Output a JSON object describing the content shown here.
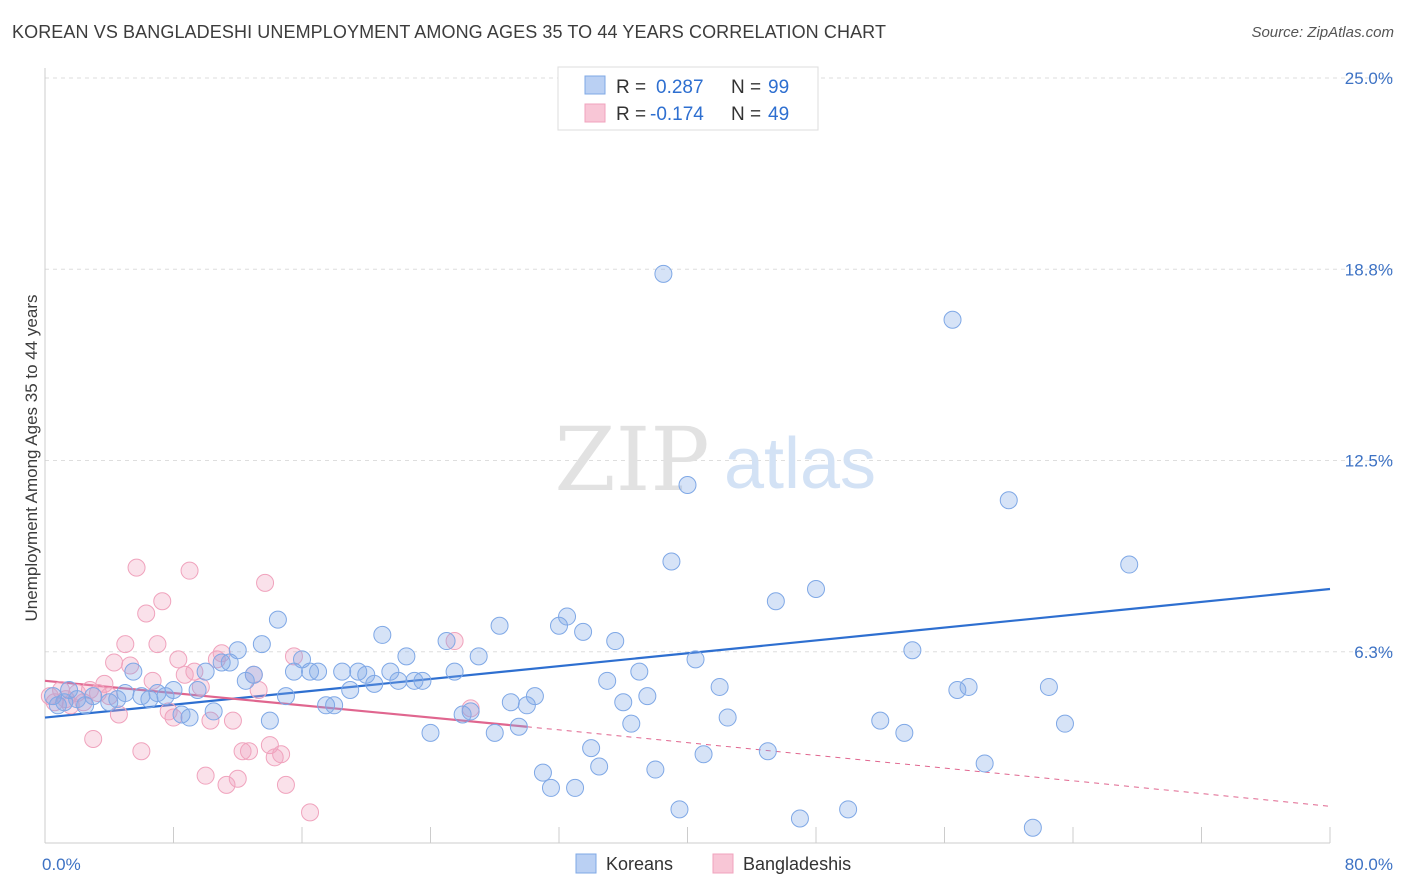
{
  "header": {
    "title": "KOREAN VS BANGLADESHI UNEMPLOYMENT AMONG AGES 35 TO 44 YEARS CORRELATION CHART",
    "source": "Source: ZipAtlas.com"
  },
  "watermark": {
    "zip": "ZIP",
    "atlas": "atlas"
  },
  "legend": {
    "rows": [
      {
        "r_label": "R =",
        "r_value": "0.287",
        "n_label": "N =",
        "n_value": "99"
      },
      {
        "r_label": "R =",
        "r_value": "-0.174",
        "n_label": "N =",
        "n_value": "49"
      }
    ]
  },
  "chart_data": {
    "type": "scatter",
    "ylabel": "Unemployment Among Ages 35 to 44 years",
    "xlim": [
      0,
      80
    ],
    "ylim": [
      0,
      25
    ],
    "x_tick_labels": [
      "0.0%",
      "80.0%"
    ],
    "y_tick_labels": [
      "6.3%",
      "12.5%",
      "18.8%",
      "25.0%"
    ],
    "y_tick_values": [
      6.25,
      12.5,
      18.75,
      25
    ],
    "colors": {
      "koreans": "#7fa8e6",
      "koreans_line": "#2e6fd0",
      "bangladeshis": "#f0a3bd",
      "bangladeshis_line": "#e0668f"
    },
    "series": [
      {
        "name": "Koreans",
        "trend": {
          "x0": 0,
          "y0": 4.1,
          "x1": 80,
          "y1": 8.3
        },
        "points": [
          [
            0.5,
            4.8
          ],
          [
            0.8,
            4.5
          ],
          [
            1.2,
            4.6
          ],
          [
            1.5,
            5.0
          ],
          [
            2.0,
            4.7
          ],
          [
            2.5,
            4.5
          ],
          [
            3.0,
            4.8
          ],
          [
            4.0,
            4.6
          ],
          [
            4.5,
            4.7
          ],
          [
            5.0,
            4.9
          ],
          [
            5.5,
            5.6
          ],
          [
            6.0,
            4.8
          ],
          [
            6.5,
            4.7
          ],
          [
            7.0,
            4.9
          ],
          [
            7.5,
            4.8
          ],
          [
            8.0,
            5.0
          ],
          [
            8.5,
            4.2
          ],
          [
            9.0,
            4.1
          ],
          [
            9.5,
            5.0
          ],
          [
            10.0,
            5.6
          ],
          [
            10.5,
            4.3
          ],
          [
            11.0,
            5.9
          ],
          [
            11.5,
            5.9
          ],
          [
            12.0,
            6.3
          ],
          [
            12.5,
            5.3
          ],
          [
            13.0,
            5.5
          ],
          [
            13.5,
            6.5
          ],
          [
            14.0,
            4.0
          ],
          [
            14.5,
            7.3
          ],
          [
            15.0,
            4.8
          ],
          [
            15.5,
            5.6
          ],
          [
            16.0,
            6.0
          ],
          [
            16.5,
            5.6
          ],
          [
            17.0,
            5.6
          ],
          [
            17.5,
            4.5
          ],
          [
            18.0,
            4.5
          ],
          [
            18.5,
            5.6
          ],
          [
            19.0,
            5.0
          ],
          [
            19.5,
            5.6
          ],
          [
            20.0,
            5.5
          ],
          [
            20.5,
            5.2
          ],
          [
            21.0,
            6.8
          ],
          [
            21.5,
            5.6
          ],
          [
            22.0,
            5.3
          ],
          [
            22.5,
            6.1
          ],
          [
            23.0,
            5.3
          ],
          [
            23.5,
            5.3
          ],
          [
            24.0,
            3.6
          ],
          [
            25.0,
            6.6
          ],
          [
            25.5,
            5.6
          ],
          [
            26.0,
            4.2
          ],
          [
            26.5,
            4.3
          ],
          [
            27.0,
            6.1
          ],
          [
            28.0,
            3.6
          ],
          [
            28.3,
            7.1
          ],
          [
            29.0,
            4.6
          ],
          [
            29.5,
            3.8
          ],
          [
            30.0,
            4.5
          ],
          [
            30.5,
            4.8
          ],
          [
            31.0,
            2.3
          ],
          [
            31.5,
            1.8
          ],
          [
            32.0,
            7.1
          ],
          [
            32.5,
            7.4
          ],
          [
            33.0,
            1.8
          ],
          [
            33.5,
            6.9
          ],
          [
            34.0,
            3.1
          ],
          [
            34.5,
            2.5
          ],
          [
            35.0,
            5.3
          ],
          [
            35.5,
            6.6
          ],
          [
            36.0,
            4.6
          ],
          [
            36.5,
            3.9
          ],
          [
            37.0,
            5.6
          ],
          [
            37.5,
            4.8
          ],
          [
            38.0,
            2.4
          ],
          [
            38.5,
            18.6
          ],
          [
            39.0,
            9.2
          ],
          [
            39.5,
            1.1
          ],
          [
            40.0,
            11.7
          ],
          [
            40.5,
            6.0
          ],
          [
            41.0,
            2.9
          ],
          [
            42.0,
            5.1
          ],
          [
            42.5,
            4.1
          ],
          [
            45.0,
            3.0
          ],
          [
            45.5,
            7.9
          ],
          [
            47.0,
            0.8
          ],
          [
            48.0,
            8.3
          ],
          [
            50.0,
            1.1
          ],
          [
            52.0,
            4.0
          ],
          [
            53.5,
            3.6
          ],
          [
            54.0,
            6.3
          ],
          [
            56.5,
            17.1
          ],
          [
            56.8,
            5.0
          ],
          [
            57.5,
            5.1
          ],
          [
            58.5,
            2.6
          ],
          [
            60.0,
            11.2
          ],
          [
            61.5,
            0.5
          ],
          [
            62.5,
            5.1
          ],
          [
            63.5,
            3.9
          ],
          [
            67.5,
            9.1
          ]
        ]
      },
      {
        "name": "Bangladeshis",
        "trend": {
          "x0": 0,
          "y0": 5.3,
          "x1": 30,
          "y1": 3.8
        },
        "trend_dashed": {
          "x0": 30,
          "y0": 3.8,
          "x1": 80,
          "y1": 1.2
        },
        "points": [
          [
            0.3,
            4.8
          ],
          [
            0.6,
            4.6
          ],
          [
            1.0,
            5.0
          ],
          [
            1.3,
            4.7
          ],
          [
            1.6,
            4.5
          ],
          [
            2.0,
            4.9
          ],
          [
            2.4,
            4.6
          ],
          [
            2.8,
            5.0
          ],
          [
            3.0,
            3.4
          ],
          [
            3.3,
            4.9
          ],
          [
            3.7,
            5.2
          ],
          [
            4.0,
            4.8
          ],
          [
            4.3,
            5.9
          ],
          [
            4.6,
            4.2
          ],
          [
            5.0,
            6.5
          ],
          [
            5.3,
            5.8
          ],
          [
            5.7,
            9.0
          ],
          [
            6.0,
            3.0
          ],
          [
            6.3,
            7.5
          ],
          [
            6.7,
            5.3
          ],
          [
            7.0,
            6.5
          ],
          [
            7.3,
            7.9
          ],
          [
            7.7,
            4.3
          ],
          [
            8.0,
            4.1
          ],
          [
            8.3,
            6.0
          ],
          [
            8.7,
            5.5
          ],
          [
            9.0,
            8.9
          ],
          [
            9.3,
            5.6
          ],
          [
            9.7,
            5.1
          ],
          [
            10.0,
            2.2
          ],
          [
            10.3,
            4.0
          ],
          [
            10.7,
            6.0
          ],
          [
            11.0,
            6.2
          ],
          [
            11.3,
            1.9
          ],
          [
            11.7,
            4.0
          ],
          [
            12.0,
            2.1
          ],
          [
            12.3,
            3.0
          ],
          [
            12.7,
            3.0
          ],
          [
            13.0,
            5.5
          ],
          [
            13.3,
            5.0
          ],
          [
            13.7,
            8.5
          ],
          [
            14.0,
            3.2
          ],
          [
            14.3,
            2.8
          ],
          [
            14.7,
            2.9
          ],
          [
            15.0,
            1.9
          ],
          [
            15.5,
            6.1
          ],
          [
            16.5,
            1.0
          ],
          [
            25.5,
            6.6
          ],
          [
            26.5,
            4.4
          ]
        ]
      }
    ],
    "legend_placement": "top-center",
    "grid": true
  },
  "bottom_legend": {
    "items": [
      "Koreans",
      "Bangladeshis"
    ]
  }
}
